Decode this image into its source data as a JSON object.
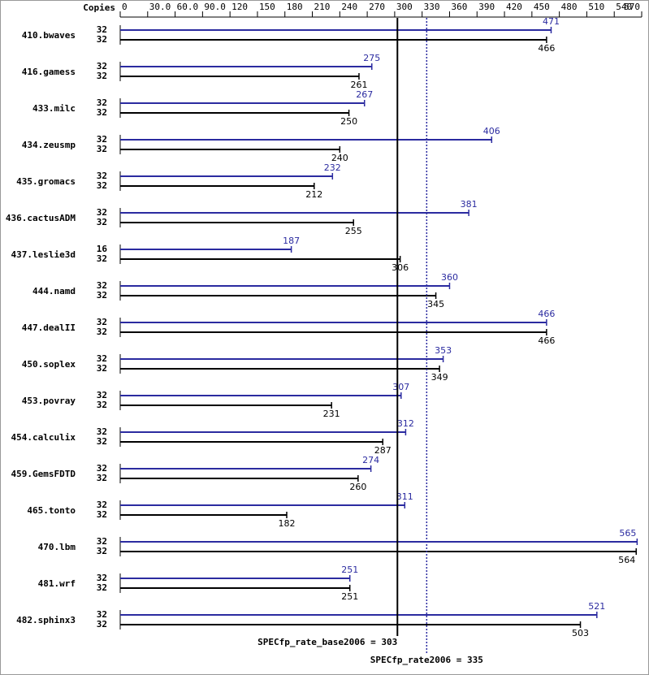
{
  "chart_data": {
    "type": "bar",
    "copies_label": "Copies",
    "categories": [
      "410.bwaves",
      "416.gamess",
      "433.milc",
      "434.zeusmp",
      "435.gromacs",
      "436.cactusADM",
      "437.leslie3d",
      "444.namd",
      "447.dealII",
      "450.soplex",
      "453.povray",
      "454.calculix",
      "459.GemsFDTD",
      "465.tonto",
      "470.lbm",
      "481.wrf",
      "482.sphinx3"
    ],
    "series": [
      {
        "color": "#2b2ba0",
        "copies": [
          32,
          32,
          32,
          32,
          32,
          32,
          16,
          32,
          32,
          32,
          32,
          32,
          32,
          32,
          32,
          32,
          32
        ],
        "values": [
          471,
          275,
          267,
          406,
          232,
          381,
          187,
          360,
          466,
          353,
          307,
          312,
          274,
          311,
          565,
          251,
          521
        ]
      },
      {
        "color": "#000000",
        "copies": [
          32,
          32,
          32,
          32,
          32,
          32,
          32,
          32,
          32,
          32,
          32,
          32,
          32,
          32,
          32,
          32,
          32
        ],
        "values": [
          466,
          261,
          250,
          240,
          212,
          255,
          306,
          345,
          466,
          349,
          231,
          287,
          260,
          182,
          564,
          251,
          503
        ]
      }
    ],
    "xlim": [
      0,
      570
    ],
    "xticks": [
      0,
      {
        "value": 30,
        "label": "30.0"
      },
      {
        "value": 60,
        "label": "60.0"
      },
      {
        "value": 90,
        "label": "90.0"
      },
      120,
      150,
      180,
      210,
      240,
      270,
      300,
      330,
      360,
      390,
      420,
      450,
      480,
      510,
      540,
      570
    ],
    "reference_lines": [
      {
        "label": "SPECfp_rate_base2006 = 303",
        "value": 303,
        "color": "#000000",
        "style": "solid"
      },
      {
        "label": "SPECfp_rate2006 = 335",
        "value": 335,
        "color": "#2b2ba0",
        "style": "dotted"
      }
    ]
  }
}
